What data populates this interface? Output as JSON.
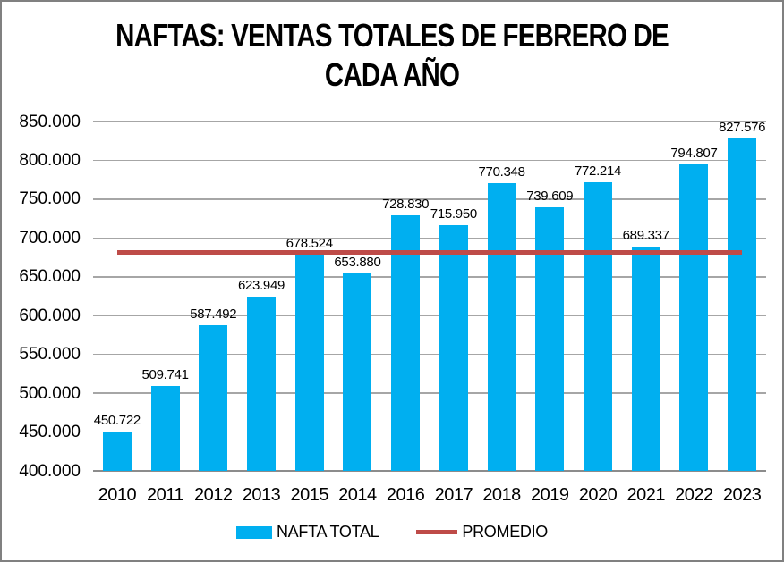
{
  "title": {
    "line1": "NAFTAS: VENTAS TOTALES DE FEBRERO DE",
    "line2": "CADA AÑO"
  },
  "colors": {
    "bar": "#00AFF0",
    "average_line": "#BE4B48",
    "gridline": "#A6A6A6",
    "axis": "#8C8C8C",
    "border": "#808080",
    "text": "#000000"
  },
  "legend": {
    "items": [
      {
        "label": "NAFTA TOTAL",
        "swatch": "bar-rect"
      },
      {
        "label": "PROMEDIO",
        "swatch": "line"
      }
    ]
  },
  "chart_data": {
    "type": "bar",
    "title": "NAFTAS: VENTAS TOTALES DE FEBRERO DE CADA AÑO",
    "categories": [
      "2010",
      "2011",
      "2012",
      "2013",
      "2015",
      "2014",
      "2016",
      "2017",
      "2018",
      "2019",
      "2020",
      "2021",
      "2022",
      "2023"
    ],
    "series": [
      {
        "name": "NAFTA TOTAL",
        "values": [
          450722,
          509741,
          587492,
          623949,
          678524,
          653880,
          728830,
          715950,
          770348,
          739609,
          772214,
          689337,
          794807,
          827576
        ],
        "data_labels": [
          "450.722",
          "509.741",
          "587.492",
          "623.949",
          "678.524",
          "653.880",
          "728.830",
          "715.950",
          "770.348",
          "739.609",
          "772.214",
          "689.337",
          "794.807",
          "827.576"
        ]
      }
    ],
    "average_line": {
      "name": "PROMEDIO",
      "value": 681641
    },
    "xlabel": "",
    "ylabel": "",
    "ylim": [
      400000,
      850000
    ],
    "ytick_step": 50000,
    "ytick_labels": [
      "400.000",
      "450.000",
      "500.000",
      "550.000",
      "600.000",
      "650.000",
      "700.000",
      "750.000",
      "800.000",
      "850.000"
    ],
    "grid": true,
    "legend_position": "bottom"
  }
}
